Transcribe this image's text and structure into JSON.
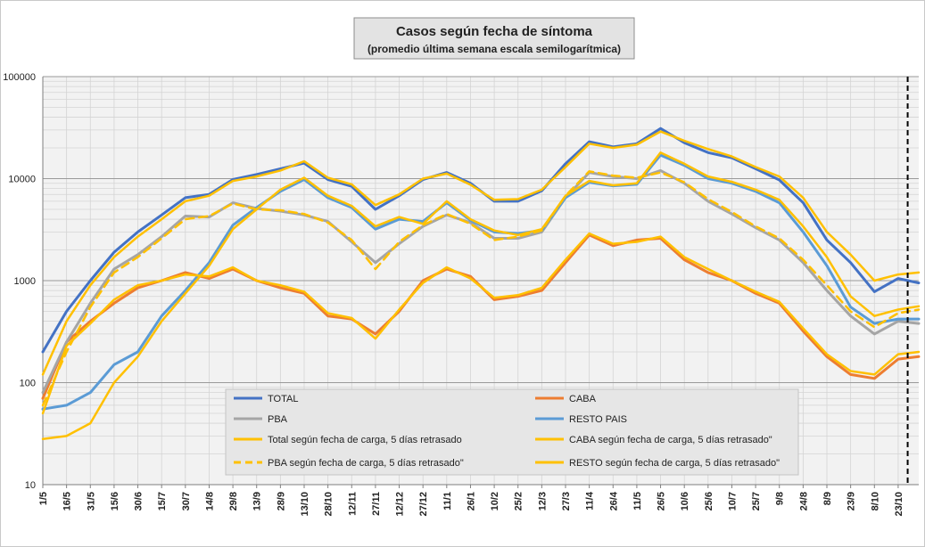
{
  "chart_data": {
    "type": "line",
    "title": "Casos según fecha de síntoma",
    "subtitle": "(promedio última semana escala semilogarítmica)",
    "y_scale": "log",
    "ylim": [
      10,
      100000
    ],
    "y_ticks": [
      "10",
      "100",
      "1000",
      "10000",
      "100000"
    ],
    "y_tick_values": [
      10,
      100,
      1000,
      10000,
      100000
    ],
    "x_range": [
      "2020-05-01",
      "2021-11-05"
    ],
    "x_tick_labels": [
      "1/5",
      "16/5",
      "31/5",
      "15/6",
      "30/6",
      "15/7",
      "30/7",
      "14/8",
      "29/8",
      "13/9",
      "28/9",
      "13/10",
      "28/10",
      "12/11",
      "27/11",
      "12/12",
      "27/12",
      "11/1",
      "26/1",
      "10/2",
      "25/2",
      "12/3",
      "27/3",
      "11/4",
      "26/4",
      "11/5",
      "26/5",
      "10/6",
      "25/6",
      "10/7",
      "25/7",
      "9/8",
      "24/8",
      "8/9",
      "23/9",
      "8/10",
      "23/10"
    ],
    "x_tick_dates": [
      "2020-05-01",
      "2020-05-16",
      "2020-05-31",
      "2020-06-15",
      "2020-06-30",
      "2020-07-15",
      "2020-07-30",
      "2020-08-14",
      "2020-08-29",
      "2020-09-13",
      "2020-09-28",
      "2020-10-13",
      "2020-10-28",
      "2020-11-12",
      "2020-11-27",
      "2020-12-12",
      "2020-12-27",
      "2021-01-11",
      "2021-01-26",
      "2021-02-10",
      "2021-02-25",
      "2021-03-12",
      "2021-03-27",
      "2021-04-11",
      "2021-04-26",
      "2021-05-11",
      "2021-05-26",
      "2021-06-10",
      "2021-06-25",
      "2021-07-10",
      "2021-07-25",
      "2021-08-09",
      "2021-08-24",
      "2021-09-08",
      "2021-09-23",
      "2021-10-08",
      "2021-10-23"
    ],
    "grid": true,
    "vertical_marker_date": "2021-10-29",
    "legend_position": "bottom-center",
    "series": [
      {
        "name": "TOTAL",
        "color": "#4472c4",
        "dash": "solid",
        "width": 3,
        "x": [
          "2020-05-01",
          "2020-05-16",
          "2020-05-31",
          "2020-06-15",
          "2020-06-30",
          "2020-07-15",
          "2020-07-30",
          "2020-08-14",
          "2020-08-29",
          "2020-09-13",
          "2020-09-28",
          "2020-10-13",
          "2020-10-28",
          "2020-11-12",
          "2020-11-27",
          "2020-12-12",
          "2020-12-27",
          "2021-01-11",
          "2021-01-26",
          "2021-02-10",
          "2021-02-25",
          "2021-03-12",
          "2021-03-27",
          "2021-04-11",
          "2021-04-26",
          "2021-05-11",
          "2021-05-26",
          "2021-06-10",
          "2021-06-25",
          "2021-07-10",
          "2021-07-25",
          "2021-08-09",
          "2021-08-24",
          "2021-09-08",
          "2021-09-23",
          "2021-10-08",
          "2021-10-23",
          "2021-11-05"
        ],
        "values": [
          200,
          500,
          1000,
          1900,
          3000,
          4400,
          6500,
          7000,
          9800,
          11000,
          12500,
          14200,
          9800,
          8400,
          5000,
          6800,
          9800,
          11500,
          9000,
          6000,
          6000,
          7600,
          14000,
          23000,
          20500,
          22000,
          31000,
          22500,
          18000,
          16000,
          12500,
          9700,
          5800,
          2500,
          1500,
          780,
          1050,
          950
        ]
      },
      {
        "name": "CABA",
        "color": "#ed7d31",
        "dash": "solid",
        "width": 3,
        "x": [
          "2020-05-01",
          "2020-05-16",
          "2020-05-31",
          "2020-06-15",
          "2020-06-30",
          "2020-07-15",
          "2020-07-30",
          "2020-08-14",
          "2020-08-29",
          "2020-09-13",
          "2020-09-28",
          "2020-10-13",
          "2020-10-28",
          "2020-11-12",
          "2020-11-27",
          "2020-12-12",
          "2020-12-27",
          "2021-01-11",
          "2021-01-26",
          "2021-02-10",
          "2021-02-25",
          "2021-03-12",
          "2021-03-27",
          "2021-04-11",
          "2021-04-26",
          "2021-05-11",
          "2021-05-26",
          "2021-06-10",
          "2021-06-25",
          "2021-07-10",
          "2021-07-25",
          "2021-08-09",
          "2021-08-24",
          "2021-09-08",
          "2021-09-23",
          "2021-10-08",
          "2021-10-23",
          "2021-11-05"
        ],
        "values": [
          70,
          250,
          400,
          600,
          850,
          1000,
          1200,
          1050,
          1300,
          1000,
          850,
          750,
          450,
          420,
          300,
          500,
          1000,
          1300,
          1100,
          650,
          700,
          800,
          1500,
          2800,
          2200,
          2500,
          2600,
          1600,
          1200,
          1000,
          750,
          600,
          320,
          180,
          120,
          110,
          170,
          180
        ]
      },
      {
        "name": "PBA",
        "color": "#a5a5a5",
        "dash": "solid",
        "width": 3,
        "x": [
          "2020-05-01",
          "2020-05-16",
          "2020-05-31",
          "2020-06-15",
          "2020-06-30",
          "2020-07-15",
          "2020-07-30",
          "2020-08-14",
          "2020-08-29",
          "2020-09-13",
          "2020-09-28",
          "2020-10-13",
          "2020-10-28",
          "2020-11-12",
          "2020-11-27",
          "2020-12-12",
          "2020-12-27",
          "2021-01-11",
          "2021-01-26",
          "2021-02-10",
          "2021-02-25",
          "2021-03-12",
          "2021-03-27",
          "2021-04-11",
          "2021-04-26",
          "2021-05-11",
          "2021-05-26",
          "2021-06-10",
          "2021-06-25",
          "2021-07-10",
          "2021-07-25",
          "2021-08-09",
          "2021-08-24",
          "2021-09-08",
          "2021-09-23",
          "2021-10-08",
          "2021-10-23",
          "2021-11-05"
        ],
        "values": [
          80,
          250,
          600,
          1300,
          1800,
          2700,
          4300,
          4200,
          5800,
          5100,
          4800,
          4400,
          3800,
          2400,
          1500,
          2300,
          3400,
          4400,
          3700,
          2600,
          2600,
          3000,
          6500,
          11500,
          10500,
          10000,
          12000,
          9000,
          6000,
          4500,
          3300,
          2500,
          1500,
          800,
          450,
          300,
          400,
          380
        ]
      },
      {
        "name": "RESTO PAIS",
        "color": "#5b9bd5",
        "dash": "solid",
        "width": 3,
        "x": [
          "2020-05-01",
          "2020-05-16",
          "2020-05-31",
          "2020-06-15",
          "2020-06-30",
          "2020-07-15",
          "2020-07-30",
          "2020-08-14",
          "2020-08-29",
          "2020-09-13",
          "2020-09-28",
          "2020-10-13",
          "2020-10-28",
          "2020-11-12",
          "2020-11-27",
          "2020-12-12",
          "2020-12-27",
          "2021-01-11",
          "2021-01-26",
          "2021-02-10",
          "2021-02-25",
          "2021-03-12",
          "2021-03-27",
          "2021-04-11",
          "2021-04-26",
          "2021-05-11",
          "2021-05-26",
          "2021-06-10",
          "2021-06-25",
          "2021-07-10",
          "2021-07-25",
          "2021-08-09",
          "2021-08-24",
          "2021-09-08",
          "2021-09-23",
          "2021-10-08",
          "2021-10-23",
          "2021-11-05"
        ],
        "values": [
          55,
          60,
          80,
          150,
          200,
          450,
          800,
          1500,
          3500,
          5200,
          7500,
          9800,
          6500,
          5200,
          3200,
          4000,
          3800,
          5800,
          3900,
          3000,
          2900,
          3100,
          6500,
          9200,
          8500,
          8800,
          17000,
          13500,
          10000,
          9000,
          7500,
          5800,
          3000,
          1400,
          550,
          380,
          420,
          420
        ]
      },
      {
        "name": "Total según fecha de carga, 5 días retrasado",
        "color": "#ffc000",
        "dash": "solid",
        "width": 2.5,
        "x": [
          "2020-05-01",
          "2020-05-16",
          "2020-05-31",
          "2020-06-15",
          "2020-06-30",
          "2020-07-15",
          "2020-07-30",
          "2020-08-14",
          "2020-08-29",
          "2020-09-13",
          "2020-09-28",
          "2020-10-13",
          "2020-10-28",
          "2020-11-12",
          "2020-11-27",
          "2020-12-12",
          "2020-12-27",
          "2021-01-11",
          "2021-01-26",
          "2021-02-10",
          "2021-02-25",
          "2021-03-12",
          "2021-03-27",
          "2021-04-11",
          "2021-04-26",
          "2021-05-11",
          "2021-05-26",
          "2021-06-10",
          "2021-06-25",
          "2021-07-10",
          "2021-07-25",
          "2021-08-09",
          "2021-08-24",
          "2021-09-08",
          "2021-09-23",
          "2021-10-08",
          "2021-10-23",
          "2021-11-05"
        ],
        "values": [
          120,
          400,
          900,
          1700,
          2700,
          4000,
          6000,
          6800,
          9500,
          10500,
          12000,
          14800,
          10200,
          8800,
          5500,
          7000,
          10000,
          11200,
          8700,
          6200,
          6300,
          7800,
          13000,
          22000,
          20000,
          21500,
          29000,
          23500,
          19500,
          16500,
          13000,
          10500,
          6500,
          3000,
          1800,
          1000,
          1150,
          1200
        ]
      },
      {
        "name": "CABA según fecha de carga, 5 días retrasado\"",
        "color": "#ffc000",
        "dash": "solid",
        "width": 2.5,
        "x": [
          "2020-05-01",
          "2020-05-16",
          "2020-05-31",
          "2020-06-15",
          "2020-06-30",
          "2020-07-15",
          "2020-07-30",
          "2020-08-14",
          "2020-08-29",
          "2020-09-13",
          "2020-09-28",
          "2020-10-13",
          "2020-10-28",
          "2020-11-12",
          "2020-11-27",
          "2020-12-12",
          "2020-12-27",
          "2021-01-11",
          "2021-01-26",
          "2021-02-10",
          "2021-02-25",
          "2021-03-12",
          "2021-03-27",
          "2021-04-11",
          "2021-04-26",
          "2021-05-11",
          "2021-05-26",
          "2021-06-10",
          "2021-06-25",
          "2021-07-10",
          "2021-07-25",
          "2021-08-09",
          "2021-08-24",
          "2021-09-08",
          "2021-09-23",
          "2021-10-08",
          "2021-10-23",
          "2021-11-05"
        ],
        "values": [
          50,
          230,
          380,
          650,
          900,
          1000,
          1150,
          1100,
          1350,
          1000,
          900,
          780,
          480,
          430,
          270,
          520,
          950,
          1350,
          1050,
          680,
          720,
          850,
          1600,
          2900,
          2300,
          2400,
          2700,
          1700,
          1300,
          1000,
          780,
          620,
          340,
          190,
          130,
          120,
          190,
          200
        ]
      },
      {
        "name": "PBA según fecha de carga, 5 días retrasado\"",
        "color": "#ffc000",
        "dash": "dashed",
        "width": 2.5,
        "x": [
          "2020-05-01",
          "2020-05-16",
          "2020-05-31",
          "2020-06-15",
          "2020-06-30",
          "2020-07-15",
          "2020-07-30",
          "2020-08-14",
          "2020-08-29",
          "2020-09-13",
          "2020-09-28",
          "2020-10-13",
          "2020-10-28",
          "2020-11-12",
          "2020-11-27",
          "2020-12-12",
          "2020-12-27",
          "2021-01-11",
          "2021-01-26",
          "2021-02-10",
          "2021-02-25",
          "2021-03-12",
          "2021-03-27",
          "2021-04-11",
          "2021-04-26",
          "2021-05-11",
          "2021-05-26",
          "2021-06-10",
          "2021-06-25",
          "2021-07-10",
          "2021-07-25",
          "2021-08-09",
          "2021-08-24",
          "2021-09-08",
          "2021-09-23",
          "2021-10-08",
          "2021-10-23",
          "2021-11-05"
        ],
        "values": [
          60,
          200,
          550,
          1200,
          1700,
          2600,
          4000,
          4300,
          5700,
          5000,
          4900,
          4500,
          3700,
          2500,
          1300,
          2400,
          3500,
          4500,
          3600,
          2500,
          2700,
          3100,
          6800,
          11800,
          10700,
          10200,
          11500,
          9200,
          6300,
          4700,
          3400,
          2600,
          1600,
          900,
          500,
          350,
          480,
          520
        ]
      },
      {
        "name": "RESTO según fecha de carga, 5 días retrasado\"",
        "color": "#ffc000",
        "dash": "solid",
        "width": 2.5,
        "x": [
          "2020-05-01",
          "2020-05-16",
          "2020-05-31",
          "2020-06-15",
          "2020-06-30",
          "2020-07-15",
          "2020-07-30",
          "2020-08-14",
          "2020-08-29",
          "2020-09-13",
          "2020-09-28",
          "2020-10-13",
          "2020-10-28",
          "2020-11-12",
          "2020-11-27",
          "2020-12-12",
          "2020-12-27",
          "2021-01-11",
          "2021-01-26",
          "2021-02-10",
          "2021-02-25",
          "2021-03-12",
          "2021-03-27",
          "2021-04-11",
          "2021-04-26",
          "2021-05-11",
          "2021-05-26",
          "2021-06-10",
          "2021-06-25",
          "2021-07-10",
          "2021-07-25",
          "2021-08-09",
          "2021-08-24",
          "2021-09-08",
          "2021-09-23",
          "2021-10-08",
          "2021-10-23",
          "2021-11-05"
        ],
        "values": [
          28,
          30,
          40,
          100,
          180,
          400,
          750,
          1400,
          3200,
          5000,
          7800,
          10200,
          6800,
          5400,
          3400,
          4200,
          3600,
          6000,
          4000,
          3100,
          2800,
          3200,
          6800,
          9500,
          8600,
          9000,
          18000,
          14000,
          10500,
          9300,
          7800,
          6200,
          3400,
          1700,
          700,
          450,
          520,
          560
        ]
      }
    ],
    "legend": [
      {
        "label": "TOTAL",
        "color": "#4472c4",
        "dash": "solid"
      },
      {
        "label": "CABA",
        "color": "#ed7d31",
        "dash": "solid"
      },
      {
        "label": "PBA",
        "color": "#a5a5a5",
        "dash": "solid"
      },
      {
        "label": "RESTO PAIS",
        "color": "#5b9bd5",
        "dash": "solid"
      },
      {
        "label": "Total según fecha de carga, 5 días retrasado",
        "color": "#ffc000",
        "dash": "solid"
      },
      {
        "label": "CABA según fecha de carga, 5 días retrasado\"",
        "color": "#ffc000",
        "dash": "solid"
      },
      {
        "label": "PBA según fecha de carga, 5 días retrasado\"",
        "color": "#ffc000",
        "dash": "dashed"
      },
      {
        "label": "RESTO según fecha de carga, 5 días retrasado\"",
        "color": "#ffc000",
        "dash": "solid"
      }
    ]
  }
}
